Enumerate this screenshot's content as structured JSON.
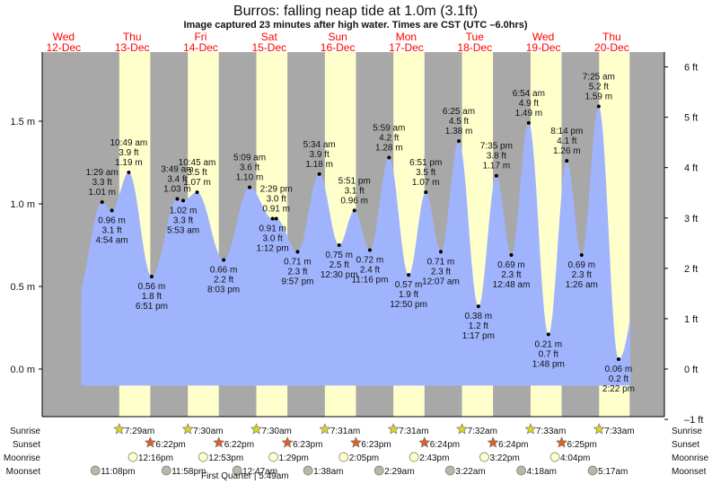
{
  "title": "Burros: falling  neap tide at 1.0m (3.1ft)",
  "subtitle": "Image captured 23 minutes after high water. Times are CST (UTC –6.0hrs)",
  "days": [
    {
      "dow": "Wed",
      "date": "12-Dec"
    },
    {
      "dow": "Thu",
      "date": "13-Dec"
    },
    {
      "dow": "Fri",
      "date": "14-Dec"
    },
    {
      "dow": "Sat",
      "date": "15-Dec"
    },
    {
      "dow": "Sun",
      "date": "16-Dec"
    },
    {
      "dow": "Mon",
      "date": "17-Dec"
    },
    {
      "dow": "Tue",
      "date": "18-Dec"
    },
    {
      "dow": "Wed",
      "date": "19-Dec"
    },
    {
      "dow": "Thu",
      "date": "20-Dec"
    }
  ],
  "colors": {
    "night": "#a8a8a8",
    "day": "#ffffcc",
    "water": "#a0b4fe",
    "sunrise": "#d6d62e",
    "sunset": "#e0602a",
    "moonrise": "#ffffcc",
    "moonset": "#b8b8aa"
  },
  "chart_data": {
    "type": "area",
    "title": "Burros: falling  neap tide at 1.0m (3.1ft)",
    "y_left_ticks": [
      "0.0 m",
      "0.5 m",
      "1.0 m",
      "1.5 m"
    ],
    "y_left_values": [
      0,
      0.5,
      1.0,
      1.5
    ],
    "y_right_ticks": [
      "–1 ft",
      "0 ft",
      "1 ft",
      "2 ft",
      "3 ft",
      "4 ft",
      "5 ft",
      "6 ft"
    ],
    "y_right_values": [
      -1,
      0,
      1,
      2,
      3,
      4,
      5,
      6
    ],
    "ylim_m": [
      -0.3,
      1.9
    ],
    "extremes": [
      {
        "day": 0,
        "time": "1:29 am",
        "ft": "3.3 ft",
        "m": 1.01,
        "type": "H"
      },
      {
        "day": 0,
        "time": "4:54 am",
        "ft": "3.1 ft",
        "m": 0.96,
        "type": "L"
      },
      {
        "day": 0,
        "time": "10:49 am",
        "ft": "3.9 ft",
        "m": 1.19,
        "type": "H"
      },
      {
        "day": 0,
        "time": "6:51 pm",
        "ft": "1.8 ft",
        "m": 0.56,
        "type": "L"
      },
      {
        "day": 1,
        "time": "3:49 am",
        "ft": "3.4 ft",
        "m": 1.03,
        "type": "H"
      },
      {
        "day": 1,
        "time": "5:53 am",
        "ft": "3.3 ft",
        "m": 1.02,
        "type": "L"
      },
      {
        "day": 1,
        "time": "10:45 am",
        "ft": "3.5 ft",
        "m": 1.07,
        "type": "H"
      },
      {
        "day": 1,
        "time": "8:03 pm",
        "ft": "2.2 ft",
        "m": 0.66,
        "type": "L"
      },
      {
        "day": 2,
        "time": "5:09 am",
        "ft": "3.6 ft",
        "m": 1.1,
        "type": "H"
      },
      {
        "day": 2,
        "time": "1:12 pm",
        "ft": "3.0 ft",
        "m": 0.91,
        "type": "L"
      },
      {
        "day": 2,
        "time": "2:29 pm",
        "ft": "3.0 ft",
        "m": 0.91,
        "type": "H"
      },
      {
        "day": 2,
        "time": "9:57 pm",
        "ft": "2.3 ft",
        "m": 0.71,
        "type": "L"
      },
      {
        "day": 3,
        "time": "5:34 am",
        "ft": "3.9 ft",
        "m": 1.18,
        "type": "H"
      },
      {
        "day": 3,
        "time": "12:30 pm",
        "ft": "2.5 ft",
        "m": 0.75,
        "type": "L"
      },
      {
        "day": 3,
        "time": "5:51 pm",
        "ft": "3.1 ft",
        "m": 0.96,
        "type": "H"
      },
      {
        "day": 3,
        "time": "11:16 pm",
        "ft": "2.4 ft",
        "m": 0.72,
        "type": "L"
      },
      {
        "day": 4,
        "time": "5:59 am",
        "ft": "4.2 ft",
        "m": 1.28,
        "type": "H"
      },
      {
        "day": 4,
        "time": "12:50 pm",
        "ft": "1.9 ft",
        "m": 0.57,
        "type": "L"
      },
      {
        "day": 4,
        "time": "6:51 pm",
        "ft": "3.5 ft",
        "m": 1.07,
        "type": "H"
      },
      {
        "day": 5,
        "time": "12:07 am",
        "ft": "2.3 ft",
        "m": 0.71,
        "type": "L"
      },
      {
        "day": 5,
        "time": "6:25 am",
        "ft": "4.5 ft",
        "m": 1.38,
        "type": "H"
      },
      {
        "day": 5,
        "time": "1:17 pm",
        "ft": "1.2 ft",
        "m": 0.38,
        "type": "L"
      },
      {
        "day": 5,
        "time": "7:35 pm",
        "ft": "3.8 ft",
        "m": 1.17,
        "type": "H"
      },
      {
        "day": 6,
        "time": "12:48 am",
        "ft": "2.3 ft",
        "m": 0.69,
        "type": "L"
      },
      {
        "day": 6,
        "time": "6:54 am",
        "ft": "4.9 ft",
        "m": 1.49,
        "type": "H"
      },
      {
        "day": 6,
        "time": "1:48 pm",
        "ft": "0.7 ft",
        "m": 0.21,
        "type": "L"
      },
      {
        "day": 6,
        "time": "8:14 pm",
        "ft": "4.1 ft",
        "m": 1.26,
        "type": "H"
      },
      {
        "day": 7,
        "time": "1:26 am",
        "ft": "2.3 ft",
        "m": 0.69,
        "type": "L"
      },
      {
        "day": 7,
        "time": "7:25 am",
        "ft": "5.2 ft",
        "m": 1.59,
        "type": "H"
      },
      {
        "day": 7,
        "time": "2:22 pm",
        "ft": "0.2 ft",
        "m": 0.06,
        "type": "L"
      }
    ]
  },
  "astro": {
    "labels": {
      "sunrise": "Sunrise",
      "sunset": "Sunset",
      "moonrise": "Moonrise",
      "moonset": "Moonset"
    },
    "sunrise": [
      {
        "day": 0,
        "time": "7:29am"
      },
      {
        "day": 1,
        "time": "7:30am"
      },
      {
        "day": 2,
        "time": "7:30am"
      },
      {
        "day": 3,
        "time": "7:31am"
      },
      {
        "day": 4,
        "time": "7:31am"
      },
      {
        "day": 5,
        "time": "7:32am"
      },
      {
        "day": 6,
        "time": "7:33am"
      },
      {
        "day": 7,
        "time": "7:33am"
      }
    ],
    "sunset": [
      {
        "day": 0,
        "time": "6:22pm"
      },
      {
        "day": 1,
        "time": "6:22pm"
      },
      {
        "day": 2,
        "time": "6:23pm"
      },
      {
        "day": 3,
        "time": "6:23pm"
      },
      {
        "day": 4,
        "time": "6:24pm"
      },
      {
        "day": 5,
        "time": "6:24pm"
      },
      {
        "day": 6,
        "time": "6:25pm"
      }
    ],
    "moonrise": [
      {
        "day": 0,
        "time": "12:16pm"
      },
      {
        "day": 1,
        "time": "12:53pm"
      },
      {
        "day": 2,
        "time": "1:29pm"
      },
      {
        "day": 3,
        "time": "2:05pm"
      },
      {
        "day": 4,
        "time": "2:43pm"
      },
      {
        "day": 5,
        "time": "3:22pm"
      },
      {
        "day": 6,
        "time": "4:04pm"
      }
    ],
    "moonset": [
      {
        "day": -1,
        "time": "11:08pm"
      },
      {
        "day": 0,
        "time": "11:58pm"
      },
      {
        "day": 2,
        "time": "12:47am"
      },
      {
        "day": 3,
        "time": "1:38am"
      },
      {
        "day": 4,
        "time": "2:29am"
      },
      {
        "day": 5,
        "time": "3:22am"
      },
      {
        "day": 6,
        "time": "4:18am"
      },
      {
        "day": 7,
        "time": "5:17am"
      }
    ],
    "moon_phase": "First Quarter | 5:49am"
  }
}
